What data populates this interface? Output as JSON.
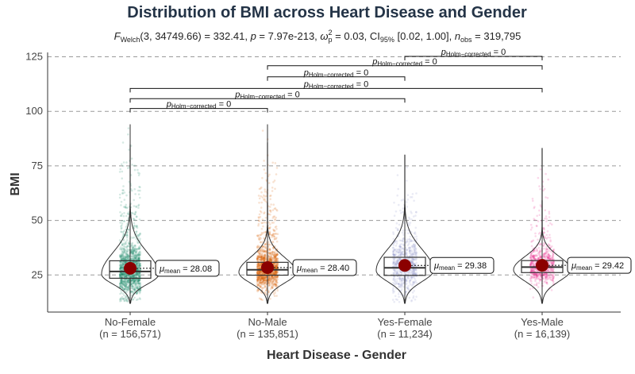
{
  "chart_data": {
    "type": "violin-box",
    "title": "Distribution of BMI across Heart Disease and Gender",
    "subtitle": {
      "stat": "F",
      "stat_sub": "Welch",
      "df": "(3, 34749.66)",
      "stat_value": "= 332.41,",
      "p_label": "p",
      "p_value": "= 7.97e-213,",
      "effect_label": "ω",
      "effect_sup": "2",
      "effect_sub": "p",
      "effect_value": "= 0.03, CI",
      "ci_sub": "95%",
      "ci_value": "[0.02, 1.00],",
      "n_label": "n",
      "n_sub": "obs",
      "n_value": "= 319,795"
    },
    "xlabel": "Heart Disease - Gender",
    "ylabel": "BMI",
    "ylim": [
      8,
      127
    ],
    "yticks": [
      25,
      50,
      75,
      100,
      125
    ],
    "grid": "horizontal dashed",
    "groups": [
      {
        "name": "No-Female",
        "n_label": "(n = 156,571)",
        "color": "#1b8a6b",
        "mean": 28.08,
        "mean_label": "= 28.08",
        "q1": 23.5,
        "median": 26.6,
        "q3": 31.5,
        "min": 12,
        "max": 94
      },
      {
        "name": "No-Male",
        "n_label": "(n = 135,851)",
        "color": "#d95f02",
        "mean": 28.4,
        "mean_label": "= 28.40",
        "q1": 24.9,
        "median": 27.4,
        "q3": 30.8,
        "min": 12,
        "max": 94
      },
      {
        "name": "Yes-Female",
        "n_label": "(n = 11,234)",
        "color": "#8b8fc6",
        "mean": 29.38,
        "mean_label": "= 29.38",
        "q1": 24.8,
        "median": 28.3,
        "q3": 33.1,
        "min": 12,
        "max": 80
      },
      {
        "name": "Yes-Male",
        "n_label": "(n = 16,139)",
        "color": "#e7298a",
        "mean": 29.42,
        "mean_label": "= 29.42",
        "q1": 26.1,
        "median": 28.6,
        "q3": 31.6,
        "min": 12,
        "max": 83
      }
    ],
    "mean_symbol": "μ",
    "mean_sub": "mean",
    "comparisons": [
      {
        "from": 0,
        "to": 1,
        "y": 101.3,
        "p_label": "p",
        "p_sub": "Holm−corrected",
        "p_value": "= 0"
      },
      {
        "from": 0,
        "to": 2,
        "y": 105.8,
        "p_label": "p",
        "p_sub": "Holm−corrected",
        "p_value": "= 0"
      },
      {
        "from": 0,
        "to": 3,
        "y": 110.5,
        "p_label": "p",
        "p_sub": "Holm−corrected",
        "p_value": "= 0"
      },
      {
        "from": 1,
        "to": 2,
        "y": 115.8,
        "p_label": "p",
        "p_sub": "Holm−corrected",
        "p_value": "= 0"
      },
      {
        "from": 1,
        "to": 3,
        "y": 120.9,
        "p_label": "p",
        "p_sub": "Holm−corrected",
        "p_value": "= 0"
      },
      {
        "from": 2,
        "to": 3,
        "y": 125.2,
        "p_label": "p",
        "p_sub": "Holm−corrected",
        "p_value": "= 0"
      }
    ]
  }
}
